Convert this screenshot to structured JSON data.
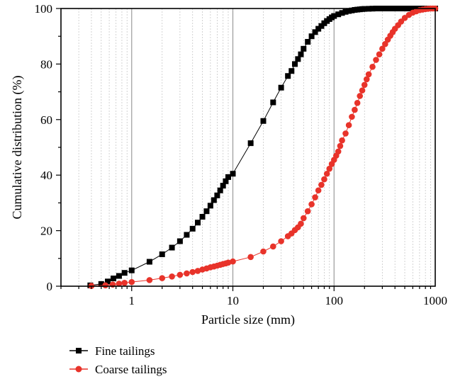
{
  "chart_data": {
    "type": "line",
    "xlabel": "Particle size (mm)",
    "ylabel": "Cumulative distribution (%)",
    "x_scale": "log",
    "xlim": [
      0.2,
      1000
    ],
    "ylim": [
      0,
      100
    ],
    "x_ticks": [
      "1",
      "10",
      "100",
      "1000"
    ],
    "y_ticks": [
      "0",
      "20",
      "40",
      "60",
      "80",
      "100"
    ],
    "grid": "vertical, major and minor",
    "legend_position": "bottom-left",
    "series": [
      {
        "name": "Fine tailings",
        "color": "#000000",
        "marker": "square",
        "x": [
          0.39,
          0.5,
          0.58,
          0.66,
          0.75,
          0.85,
          1.0,
          1.5,
          2.0,
          2.5,
          3.0,
          3.5,
          4.0,
          4.5,
          5.0,
          5.5,
          6.0,
          6.5,
          7.0,
          7.5,
          8.0,
          8.5,
          9.0,
          10.0,
          15,
          20,
          25,
          30,
          35,
          38,
          41,
          44,
          47,
          50,
          55,
          60,
          65,
          70,
          75,
          80,
          85,
          90,
          95,
          100,
          110,
          120,
          130,
          140,
          150,
          160,
          170,
          180,
          190,
          200,
          220,
          240,
          260,
          280,
          300,
          330,
          360,
          400,
          450,
          500,
          550,
          600,
          650,
          700,
          750,
          800,
          900,
          1000
        ],
        "y": [
          0.3,
          0.8,
          1.7,
          2.8,
          3.7,
          4.8,
          5.7,
          8.8,
          11.5,
          13.9,
          16.2,
          18.5,
          20.7,
          22.9,
          25.0,
          27.0,
          29.0,
          31.0,
          32.7,
          34.5,
          36.2,
          37.8,
          39.3,
          40.5,
          51.5,
          59.5,
          66.2,
          71.5,
          75.7,
          77.5,
          80.0,
          81.8,
          83.5,
          85.5,
          88.0,
          90.0,
          91.5,
          92.7,
          93.7,
          94.7,
          95.5,
          96.2,
          96.8,
          97.3,
          97.9,
          98.4,
          98.8,
          99.1,
          99.3,
          99.5,
          99.6,
          99.7,
          99.8,
          99.85,
          99.9,
          99.95,
          100,
          100,
          100,
          100,
          100,
          100,
          100,
          100,
          100,
          100,
          100,
          100,
          100,
          100,
          100,
          100
        ]
      },
      {
        "name": "Coarse tailings",
        "color": "#e8332a",
        "marker": "circle",
        "x": [
          0.4,
          0.55,
          0.65,
          0.75,
          0.85,
          1.0,
          1.5,
          2.0,
          2.5,
          3.0,
          3.5,
          4.0,
          4.5,
          5.0,
          5.5,
          6.0,
          6.5,
          7.0,
          7.5,
          8.0,
          8.5,
          9.0,
          10.0,
          15,
          20,
          25,
          30,
          35,
          38,
          41,
          44,
          47,
          50,
          55,
          60,
          65,
          70,
          75,
          80,
          85,
          90,
          95,
          100,
          105,
          110,
          115,
          120,
          130,
          140,
          150,
          160,
          170,
          180,
          190,
          200,
          210,
          220,
          240,
          260,
          280,
          300,
          320,
          340,
          360,
          380,
          400,
          430,
          460,
          500,
          550,
          600,
          650,
          700,
          750,
          800,
          850,
          900,
          950,
          1000
        ],
        "y": [
          0.1,
          0.3,
          0.6,
          0.9,
          1.2,
          1.5,
          2.2,
          2.9,
          3.5,
          4.1,
          4.6,
          5.1,
          5.5,
          6.0,
          6.4,
          6.8,
          7.1,
          7.4,
          7.7,
          8.0,
          8.2,
          8.5,
          8.9,
          10.5,
          12.5,
          14.3,
          16.2,
          18.0,
          19.0,
          20.2,
          21.2,
          22.5,
          24.5,
          27.0,
          29.5,
          32.0,
          34.5,
          36.5,
          38.5,
          40.5,
          42.3,
          44.0,
          45.5,
          47.0,
          48.5,
          50.5,
          52.5,
          55.0,
          58.0,
          61.0,
          63.5,
          66.0,
          68.5,
          70.5,
          72.5,
          74.5,
          76.3,
          79.0,
          81.5,
          83.5,
          85.5,
          87.2,
          88.8,
          90.2,
          91.5,
          92.7,
          94.0,
          95.3,
          96.6,
          97.7,
          98.5,
          99.0,
          99.4,
          99.6,
          99.8,
          99.9,
          100,
          100,
          100
        ]
      }
    ]
  }
}
